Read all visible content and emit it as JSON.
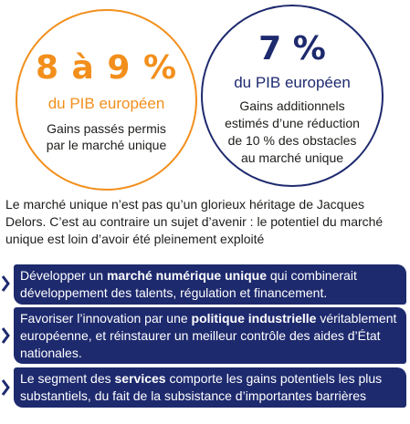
{
  "left_circle": {
    "figure": "8 à 9 %",
    "subtitle": "du PIB européen",
    "description_lines": [
      "Gains passés permis",
      "par le marché unique"
    ]
  },
  "right_circle": {
    "figure": "7 %",
    "subtitle": "du PIB européen",
    "description_lines": [
      "Gains additionnels",
      "estimés d’une réduction",
      "de 10 % des obstacles",
      "au marché unique"
    ]
  },
  "intro": "Le marché unique n’est pas qu’un glorieux héritage de Jacques Delors. C’est au contraire un sujet d’avenir : le potentiel du marché unique est loin d’avoir été pleinement exploité",
  "items": [
    {
      "before": "Développer un ",
      "bold": "marché numérique unique",
      "after": " qui combinerait développement des talents, régulation et financement."
    },
    {
      "before": "Favoriser l’innovation par une ",
      "bold": "politique industrielle",
      "after": " véritablement européenne, et réinstaurer un meilleur contrôle des aides d’État nationales."
    },
    {
      "before": "Le segment des ",
      "bold": "services",
      "after": " comporte les gains potentiels les plus substantiels, du fait de la subsistance d’importantes barrières"
    }
  ],
  "colors": {
    "orange": "#f28f1c",
    "navy": "#1e2a6e"
  },
  "icons": [
    "chevron-right-icon"
  ]
}
